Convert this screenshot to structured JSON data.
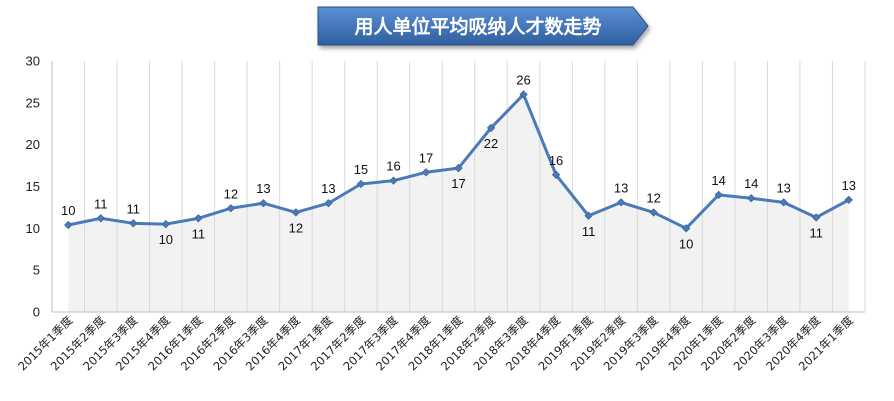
{
  "chart_data": {
    "type": "line",
    "title": "用人单位平均吸纳人才数走势",
    "categories": [
      "2015年1季度",
      "2015年2季度",
      "2015年3季度",
      "2015年4季度",
      "2016年1季度",
      "2016年2季度",
      "2016年3季度",
      "2016年4季度",
      "2017年1季度",
      "2017年2季度",
      "2017年3季度",
      "2017年4季度",
      "2018年1季度",
      "2018年2季度",
      "2018年3季度",
      "2018年4季度",
      "2019年1季度",
      "2019年2季度",
      "2019年3季度",
      "2019年4季度",
      "2020年1季度",
      "2020年2季度",
      "2020年3季度",
      "2020年4季度",
      "2021年1季度"
    ],
    "values": [
      10.4,
      11.2,
      10.6,
      10.5,
      11.2,
      12.4,
      13.0,
      11.9,
      13.0,
      15.3,
      15.7,
      16.7,
      17.2,
      22.0,
      26.0,
      16.4,
      11.5,
      13.1,
      11.9,
      10.0,
      14.0,
      13.6,
      13.1,
      11.3,
      13.4
    ],
    "data_labels": [
      "10",
      "11",
      "11",
      "10",
      "11",
      "12",
      "13",
      "12",
      "13",
      "15",
      "16",
      "17",
      "17",
      "22",
      "26",
      "16",
      "11",
      "13",
      "12",
      "10",
      "14",
      "14",
      "13",
      "11",
      "13"
    ],
    "label_positions": [
      "above",
      "above",
      "above",
      "below",
      "below",
      "above",
      "above",
      "below",
      "above",
      "above",
      "above",
      "above",
      "below",
      "below",
      "above",
      "above",
      "below",
      "above",
      "above",
      "below",
      "above",
      "above",
      "above",
      "below",
      "above"
    ],
    "y_ticks": [
      "0",
      "5",
      "10",
      "15",
      "20",
      "25",
      "30"
    ],
    "ylim": [
      0,
      30
    ],
    "xlabel": "",
    "ylabel": "",
    "grid": "vertical",
    "line_color": "#4a7ab8",
    "title_bg_color": "#3c6fb4",
    "area_fill_color": "#f2f2f2"
  }
}
